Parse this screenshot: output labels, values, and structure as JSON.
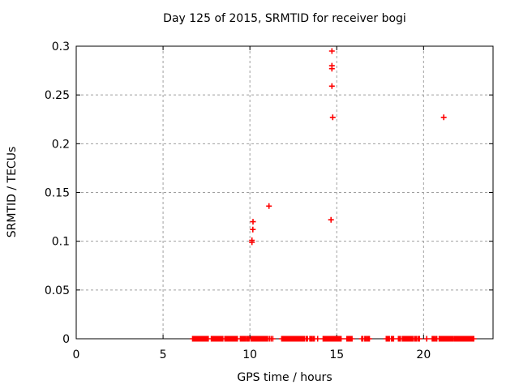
{
  "chart_data": {
    "type": "scatter",
    "title": "Day 125 of 2015, SRMTID for receiver bogi",
    "xlabel": "GPS time / hours",
    "ylabel": "SRMTID / TECUs",
    "xlim": [
      0,
      24
    ],
    "ylim": [
      0,
      0.3
    ],
    "xticks": [
      0,
      5,
      10,
      15,
      20
    ],
    "xticklabels": [
      "0",
      "5",
      "10",
      "15",
      "20"
    ],
    "yticks": [
      0,
      0.05,
      0.1,
      0.15,
      0.2,
      0.25,
      0.3
    ],
    "yticklabels": [
      "0",
      "0.05",
      "0.1",
      "0.15",
      "0.2",
      "0.25",
      "0.3"
    ],
    "grid": true,
    "legend": "none",
    "marker": "plus",
    "colors": {
      "marker": "#ff0000",
      "grid": "#9f9f9f",
      "axis": "#000000",
      "background": "#ffffff",
      "text": "#000000"
    },
    "points": [
      [
        10.12,
        0.099
      ],
      [
        10.12,
        0.101
      ],
      [
        10.17,
        0.112
      ],
      [
        10.18,
        0.12
      ],
      [
        11.1,
        0.136
      ],
      [
        14.67,
        0.122
      ],
      [
        14.72,
        0.259
      ],
      [
        14.72,
        0.277
      ],
      [
        14.72,
        0.28
      ],
      [
        14.72,
        0.295
      ],
      [
        14.77,
        0.227
      ],
      [
        21.16,
        0.227
      ]
    ],
    "baseline_y": 0,
    "baseline_segments": [
      [
        6.7,
        7.55
      ],
      [
        7.78,
        8.48
      ],
      [
        8.56,
        9.33
      ],
      [
        9.45,
        9.77
      ],
      [
        9.83,
        10.0
      ],
      [
        10.06,
        11.05
      ],
      [
        11.83,
        13.16
      ],
      [
        13.25,
        13.35
      ],
      [
        13.45,
        13.58
      ],
      [
        13.65,
        13.74
      ],
      [
        14.22,
        15.08
      ],
      [
        15.13,
        15.25
      ],
      [
        15.58,
        15.93
      ],
      [
        16.44,
        16.55
      ],
      [
        16.62,
        16.7
      ],
      [
        16.76,
        16.92
      ],
      [
        17.85,
        18.08
      ],
      [
        18.15,
        18.27
      ],
      [
        18.55,
        18.7
      ],
      [
        18.78,
        19.4
      ],
      [
        19.48,
        19.63
      ],
      [
        19.7,
        19.77
      ],
      [
        20.5,
        20.62
      ],
      [
        20.7,
        20.78
      ],
      [
        20.9,
        21.7
      ],
      [
        21.76,
        21.96
      ],
      [
        22.0,
        22.12
      ],
      [
        22.16,
        22.23
      ],
      [
        22.29,
        22.93
      ]
    ],
    "baseline_singles": [
      7.6,
      11.12,
      11.22,
      11.32,
      13.9,
      20.18
    ]
  }
}
